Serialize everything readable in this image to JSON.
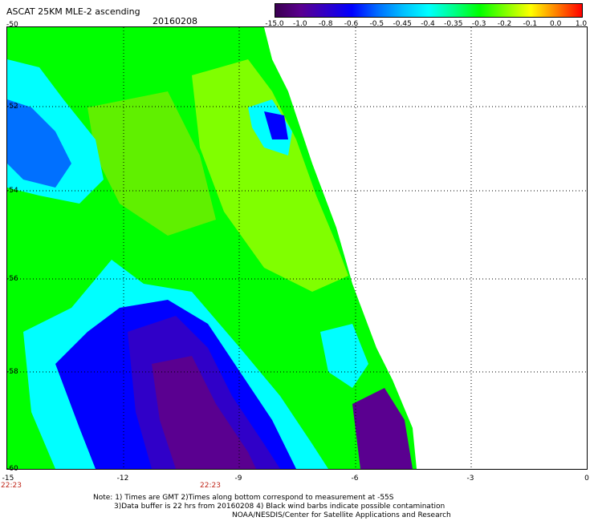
{
  "title": "ASCAT 25KM MLE-2 ascending",
  "date": "20160208",
  "colorbar": {
    "labels": [
      "-15.0",
      "-1.0",
      "-0.8",
      "-0.6",
      "-0.5",
      "-0.45",
      "-0.4",
      "-0.35",
      "-0.3",
      "-0.2",
      "-0.1",
      "0.0",
      "1.0"
    ],
    "colors": [
      "#3a0050",
      "#5a0090",
      "#3000c8",
      "#0000ff",
      "#006cff",
      "#00bfff",
      "#00ffff",
      "#00ff88",
      "#00ff00",
      "#80ff00",
      "#ffff00",
      "#ff8000",
      "#ff0000"
    ]
  },
  "axes": {
    "lat_labels": [
      "-50",
      "-52",
      "-54",
      "-56",
      "-58",
      "-60"
    ],
    "lon_labels": [
      "-15",
      "-12",
      "-9",
      "-6",
      "-3",
      "0"
    ],
    "time_labels": [
      "22:23",
      "22:23"
    ]
  },
  "field_colors": {
    "green": "#00ff00",
    "lime": "#80ff00",
    "cyan": "#00ffff",
    "blue": "#0000ff",
    "dark_blue": "#3000c8",
    "purple": "#5a0090"
  },
  "notes": {
    "line1": "Note: 1) Times are GMT 2)Times along bottom correspond to measurement at -55S",
    "line2": "3)Data buffer is 22 hrs from 20160208 4) Black wind barbs indicate possible contamination",
    "line3": "NOAA/NESDIS/Center for Satellite Applications and Research"
  }
}
